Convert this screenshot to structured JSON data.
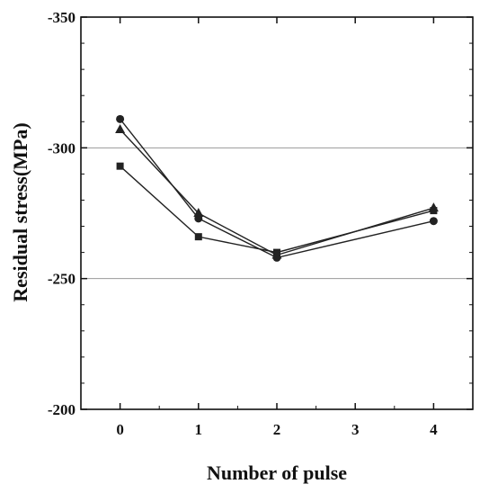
{
  "chart_data": {
    "type": "line",
    "title": "",
    "xlabel": "Number of pulse",
    "ylabel": "Residual stress(MPa)",
    "x": [
      0,
      1,
      2,
      4
    ],
    "xticks": [
      0,
      1,
      2,
      3,
      4
    ],
    "xlim": [
      -0.5,
      4.5
    ],
    "yticks": [
      -350,
      -300,
      -250,
      -200
    ],
    "ylim": [
      -350,
      -200
    ],
    "y_inverted": true,
    "grid": true,
    "series": [
      {
        "marker": "square",
        "values": [
          -293,
          -266,
          -260,
          -276
        ]
      },
      {
        "marker": "circle",
        "values": [
          -311,
          -273,
          -258,
          -272
        ]
      },
      {
        "marker": "triangle",
        "values": [
          -307,
          -275,
          -259,
          -277
        ]
      }
    ],
    "colors": {
      "line": "#222222",
      "grid": "#9a9a9a",
      "axis": "#111111"
    }
  }
}
